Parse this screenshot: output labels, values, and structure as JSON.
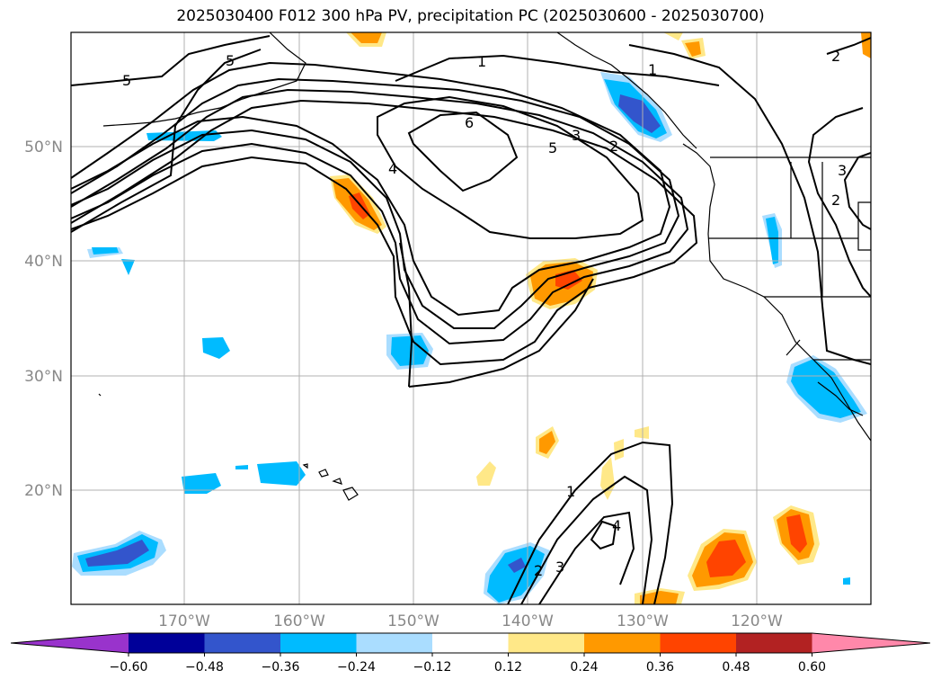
{
  "title": "2025030400 F012 300 hPa PV, precipitation PC (2025030600 - 2025030700)",
  "lat_labels": [
    "50°N",
    "40°N",
    "30°N",
    "20°N"
  ],
  "lon_labels": [
    "170°W",
    "160°W",
    "150°W",
    "140°W",
    "130°W",
    "120°W"
  ],
  "colorbar": {
    "ticks": [
      "−0.60",
      "−0.48",
      "−0.36",
      "−0.24",
      "−0.12",
      "0.12",
      "0.24",
      "0.36",
      "0.48",
      "0.60"
    ],
    "colors": [
      "#9933cc",
      "#000099",
      "#3355cc",
      "#00bbff",
      "#aaddff",
      "#ffffff",
      "#ffe888",
      "#ff9900",
      "#ff4400",
      "#b22222",
      "#ff88aa"
    ]
  },
  "contour_labels": [
    "5",
    "5",
    "1",
    "1",
    "2",
    "6",
    "4",
    "3",
    "2",
    "5",
    "3",
    "2",
    "1",
    "3",
    "2",
    "4"
  ]
}
